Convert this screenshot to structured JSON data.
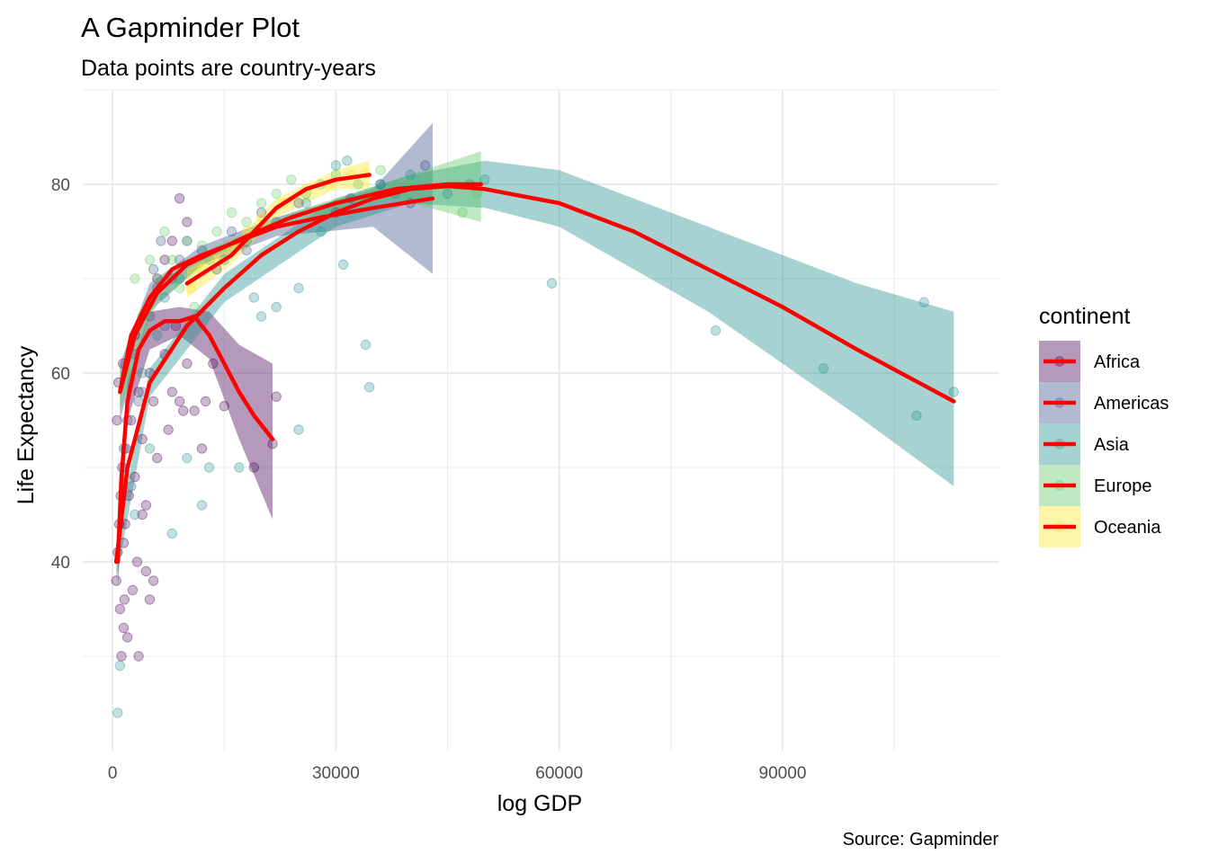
{
  "chart_data": {
    "type": "scatter",
    "title": "A Gapminder Plot",
    "subtitle": "Data points are country-years",
    "xlabel": "log GDP",
    "ylabel": "Life Expectancy",
    "caption": "Source: Gapminder",
    "xlim": [
      -4000,
      119000
    ],
    "ylim": [
      20,
      90
    ],
    "x_ticks": [
      0,
      30000,
      60000,
      90000
    ],
    "x_tick_labels": [
      "0",
      "30000",
      "60000",
      "90000"
    ],
    "y_ticks": [
      40,
      60,
      80
    ],
    "y_tick_labels": [
      "40",
      "60",
      "80"
    ],
    "grid": true,
    "legend": {
      "title": "continent",
      "position": "right",
      "entries": [
        "Africa",
        "Americas",
        "Asia",
        "Europe",
        "Oceania"
      ]
    },
    "colors": {
      "Africa": "#440154",
      "Americas": "#3B528B",
      "Asia": "#21908C",
      "Europe": "#5DC863",
      "Oceania": "#FDE725",
      "smooth_line": "#FF0000"
    },
    "series": [
      {
        "name": "Africa",
        "smooth": [
          [
            700,
            40
          ],
          [
            1200,
            49
          ],
          [
            2000,
            57
          ],
          [
            3500,
            62.5
          ],
          [
            5000,
            64.5
          ],
          [
            7000,
            65.5
          ],
          [
            9000,
            65.5
          ],
          [
            11000,
            66
          ],
          [
            13000,
            64
          ],
          [
            15000,
            61
          ],
          [
            17000,
            58
          ],
          [
            19000,
            55.5
          ],
          [
            21500,
            53
          ]
        ],
        "band": [
          [
            700,
            37,
            43
          ],
          [
            2000,
            55,
            59
          ],
          [
            5000,
            62.5,
            66.5
          ],
          [
            9000,
            64,
            67
          ],
          [
            13000,
            61.5,
            66.5
          ],
          [
            17000,
            53,
            63
          ],
          [
            21500,
            44.5,
            61
          ]
        ],
        "points": [
          [
            500,
            38
          ],
          [
            700,
            41
          ],
          [
            900,
            44
          ],
          [
            1100,
            47
          ],
          [
            1300,
            50
          ],
          [
            1500,
            42
          ],
          [
            1800,
            52
          ],
          [
            2200,
            47
          ],
          [
            2500,
            55
          ],
          [
            3000,
            49
          ],
          [
            3500,
            58
          ],
          [
            4000,
            53
          ],
          [
            4500,
            46
          ],
          [
            5000,
            60
          ],
          [
            5500,
            57
          ],
          [
            6000,
            51
          ],
          [
            7000,
            62
          ],
          [
            7500,
            54
          ],
          [
            8000,
            58
          ],
          [
            8500,
            65
          ],
          [
            9000,
            57
          ],
          [
            9500,
            56
          ],
          [
            10000,
            61
          ],
          [
            11000,
            56
          ],
          [
            12000,
            52
          ],
          [
            12500,
            57
          ],
          [
            13500,
            61
          ],
          [
            15000,
            56.5
          ],
          [
            19000,
            50
          ],
          [
            21500,
            52.5
          ],
          [
            22000,
            57.5
          ],
          [
            1000,
            35
          ],
          [
            1200,
            30
          ],
          [
            1500,
            33
          ],
          [
            2000,
            32
          ],
          [
            3500,
            30
          ],
          [
            4500,
            39
          ],
          [
            5000,
            36
          ],
          [
            5500,
            38
          ],
          [
            600,
            55
          ],
          [
            800,
            59
          ],
          [
            1400,
            61
          ],
          [
            3000,
            64
          ],
          [
            6000,
            70
          ],
          [
            7000,
            72
          ],
          [
            8000,
            74
          ],
          [
            9000,
            78.5
          ],
          [
            10000,
            76
          ],
          [
            4000,
            45
          ],
          [
            3300,
            40
          ],
          [
            2700,
            37
          ],
          [
            1700,
            44
          ],
          [
            1600,
            36
          ]
        ]
      },
      {
        "name": "Americas",
        "smooth": [
          [
            1000,
            58
          ],
          [
            2500,
            64
          ],
          [
            5000,
            68
          ],
          [
            8000,
            71
          ],
          [
            12000,
            72.5
          ],
          [
            17000,
            74
          ],
          [
            22000,
            75.5
          ],
          [
            28000,
            76.5
          ],
          [
            35000,
            77.5
          ],
          [
            43000,
            78.5
          ]
        ],
        "band": [
          [
            1000,
            55,
            61
          ],
          [
            5000,
            66.5,
            69.5
          ],
          [
            12000,
            71.5,
            73.5
          ],
          [
            22000,
            74.5,
            76.5
          ],
          [
            35000,
            75.5,
            79.5
          ],
          [
            43000,
            70.5,
            86.5
          ]
        ],
        "points": [
          [
            2000,
            55
          ],
          [
            3000,
            62
          ],
          [
            4000,
            58
          ],
          [
            5000,
            66
          ],
          [
            6000,
            69
          ],
          [
            7000,
            65
          ],
          [
            8000,
            70
          ],
          [
            9000,
            72
          ],
          [
            10000,
            74
          ],
          [
            12000,
            73
          ],
          [
            14000,
            71
          ],
          [
            16000,
            75
          ],
          [
            20000,
            77
          ],
          [
            25000,
            78
          ],
          [
            30000,
            77
          ],
          [
            32000,
            78.5
          ],
          [
            36000,
            80
          ],
          [
            40000,
            78
          ],
          [
            42000,
            82
          ],
          [
            1500,
            52
          ],
          [
            2500,
            48
          ],
          [
            3500,
            57
          ],
          [
            6500,
            74
          ],
          [
            5500,
            71
          ],
          [
            18000,
            73
          ]
        ]
      },
      {
        "name": "Asia",
        "smooth": [
          [
            500,
            40
          ],
          [
            2000,
            50
          ],
          [
            5000,
            59
          ],
          [
            10000,
            65
          ],
          [
            15000,
            69
          ],
          [
            20000,
            72.5
          ],
          [
            25000,
            75
          ],
          [
            30000,
            77
          ],
          [
            35000,
            78.5
          ],
          [
            40000,
            79.5
          ],
          [
            45000,
            79.8
          ],
          [
            50000,
            79.5
          ],
          [
            60000,
            78
          ],
          [
            70000,
            75
          ],
          [
            80000,
            71
          ],
          [
            90000,
            67
          ],
          [
            100000,
            62.5
          ],
          [
            113000,
            57
          ]
        ],
        "band": [
          [
            500,
            38,
            42
          ],
          [
            5000,
            57.5,
            60.5
          ],
          [
            15000,
            67.5,
            70.5
          ],
          [
            30000,
            75.5,
            78.5
          ],
          [
            40000,
            78,
            81
          ],
          [
            50000,
            77.5,
            82.5
          ],
          [
            60000,
            75.5,
            81.5
          ],
          [
            80000,
            66.5,
            75.5
          ],
          [
            100000,
            55.5,
            69.5
          ],
          [
            113000,
            48,
            66.5
          ]
        ],
        "points": [
          [
            1000,
            29
          ],
          [
            700,
            24
          ],
          [
            3000,
            45
          ],
          [
            5000,
            52
          ],
          [
            8000,
            43
          ],
          [
            10000,
            51
          ],
          [
            12000,
            46
          ],
          [
            13000,
            50
          ],
          [
            17000,
            50
          ],
          [
            19000,
            68
          ],
          [
            20000,
            66
          ],
          [
            22000,
            67
          ],
          [
            25000,
            69
          ],
          [
            25000,
            54
          ],
          [
            31000,
            71.5
          ],
          [
            34000,
            63
          ],
          [
            34500,
            58.5
          ],
          [
            59000,
            69.5
          ],
          [
            81000,
            64.5
          ],
          [
            95500,
            60.5
          ],
          [
            108000,
            55.5
          ],
          [
            109000,
            67.5
          ],
          [
            113000,
            58
          ],
          [
            28000,
            75
          ],
          [
            36000,
            80
          ],
          [
            40000,
            81
          ],
          [
            45000,
            79
          ],
          [
            48000,
            80
          ],
          [
            50000,
            80.5
          ],
          [
            38000,
            79
          ],
          [
            15000,
            72
          ],
          [
            18000,
            74
          ],
          [
            22000,
            76
          ],
          [
            30000,
            82
          ],
          [
            31500,
            82.5
          ],
          [
            26000,
            78
          ],
          [
            7000,
            68
          ],
          [
            6000,
            64
          ],
          [
            4000,
            60
          ],
          [
            9000,
            70
          ]
        ]
      },
      {
        "name": "Europe",
        "smooth": [
          [
            1000,
            58
          ],
          [
            3000,
            64
          ],
          [
            6000,
            68.5
          ],
          [
            10000,
            71.5
          ],
          [
            14000,
            73
          ],
          [
            18000,
            74.5
          ],
          [
            24000,
            76.5
          ],
          [
            30000,
            78
          ],
          [
            38000,
            79.5
          ],
          [
            45000,
            80
          ],
          [
            49500,
            80
          ]
        ],
        "band": [
          [
            1000,
            56,
            60
          ],
          [
            6000,
            67.5,
            69.5
          ],
          [
            14000,
            72.5,
            73.5
          ],
          [
            24000,
            76,
            77
          ],
          [
            38000,
            78.5,
            80.5
          ],
          [
            49500,
            76,
            83.5
          ]
        ],
        "points": [
          [
            2000,
            60
          ],
          [
            4000,
            66
          ],
          [
            6000,
            70
          ],
          [
            8000,
            72
          ],
          [
            10000,
            74
          ],
          [
            12000,
            73.5
          ],
          [
            14000,
            75
          ],
          [
            16000,
            77
          ],
          [
            18000,
            76
          ],
          [
            20000,
            78
          ],
          [
            22000,
            79
          ],
          [
            24000,
            80.5
          ],
          [
            26000,
            79
          ],
          [
            28000,
            80
          ],
          [
            30000,
            81
          ],
          [
            33000,
            80
          ],
          [
            36000,
            81.5
          ],
          [
            40000,
            80
          ],
          [
            47000,
            77
          ],
          [
            49000,
            79
          ],
          [
            5000,
            72
          ],
          [
            7000,
            75
          ],
          [
            3000,
            70
          ],
          [
            9000,
            69
          ],
          [
            11000,
            67
          ],
          [
            13000,
            72
          ]
        ]
      },
      {
        "name": "Oceania",
        "smooth": [
          [
            10000,
            69.5
          ],
          [
            13000,
            71
          ],
          [
            16000,
            72.5
          ],
          [
            19000,
            75
          ],
          [
            22000,
            77.5
          ],
          [
            26000,
            79.5
          ],
          [
            30000,
            80.5
          ],
          [
            34500,
            81
          ]
        ],
        "band": [
          [
            10000,
            68,
            71
          ],
          [
            16000,
            71.5,
            73.5
          ],
          [
            22000,
            76.5,
            78.5
          ],
          [
            30000,
            79.5,
            81.5
          ],
          [
            34500,
            79.5,
            82.5
          ]
        ],
        "points": [
          [
            10500,
            69
          ],
          [
            12000,
            71
          ],
          [
            14000,
            72
          ],
          [
            16000,
            73.5
          ],
          [
            18000,
            75
          ],
          [
            20000,
            76.5
          ],
          [
            23000,
            78
          ],
          [
            26000,
            79.5
          ],
          [
            29000,
            80
          ],
          [
            32000,
            81
          ],
          [
            34000,
            81.2
          ]
        ]
      }
    ]
  }
}
